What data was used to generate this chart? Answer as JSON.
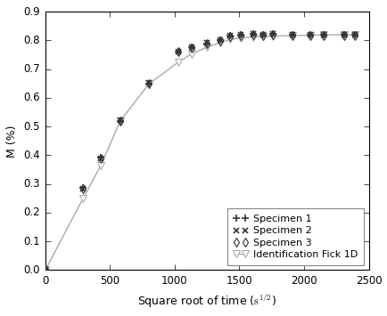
{
  "title": "",
  "xlabel": "Square root of time (s^{1/2})",
  "ylabel": "M (%)",
  "xlim": [
    0,
    2500
  ],
  "ylim": [
    0,
    0.9
  ],
  "yticks": [
    0.0,
    0.1,
    0.2,
    0.3,
    0.4,
    0.5,
    0.6,
    0.7,
    0.8,
    0.9
  ],
  "xticks": [
    0,
    500,
    1000,
    1500,
    2000,
    2500
  ],
  "specimens_x": [
    0,
    290,
    430,
    580,
    800,
    1030,
    1130,
    1250,
    1350,
    1430,
    1510,
    1610,
    1680,
    1760,
    1910,
    2050,
    2150,
    2310,
    2390
  ],
  "specimen1_y": [
    0.0,
    0.285,
    0.392,
    0.52,
    0.65,
    0.76,
    0.775,
    0.79,
    0.8,
    0.818,
    0.82,
    0.822,
    0.82,
    0.822,
    0.82,
    0.82,
    0.82,
    0.82,
    0.82
  ],
  "specimen2_y": [
    0.0,
    0.283,
    0.39,
    0.521,
    0.651,
    0.762,
    0.776,
    0.791,
    0.8,
    0.817,
    0.82,
    0.822,
    0.82,
    0.822,
    0.82,
    0.82,
    0.82,
    0.82,
    0.82
  ],
  "specimen3_y": [
    0.0,
    0.282,
    0.389,
    0.519,
    0.649,
    0.76,
    0.774,
    0.789,
    0.798,
    0.815,
    0.818,
    0.82,
    0.818,
    0.82,
    0.818,
    0.818,
    0.818,
    0.818,
    0.818
  ],
  "fick_x": [
    0,
    290,
    430,
    580,
    800,
    1030,
    1130,
    1250,
    1350,
    1430,
    1510,
    1610,
    1680,
    1760,
    1910,
    2050,
    2150,
    2310,
    2390
  ],
  "fick_y": [
    0.0,
    0.248,
    0.365,
    0.52,
    0.648,
    0.725,
    0.753,
    0.776,
    0.792,
    0.803,
    0.808,
    0.812,
    0.814,
    0.815,
    0.817,
    0.818,
    0.819,
    0.82,
    0.82
  ],
  "line_color": "#aaaaaa",
  "marker_color": "#333333",
  "spine_color": "#555555",
  "legend_fontsize": 8.0,
  "tick_fontsize": 8.5,
  "label_fontsize": 9.0
}
